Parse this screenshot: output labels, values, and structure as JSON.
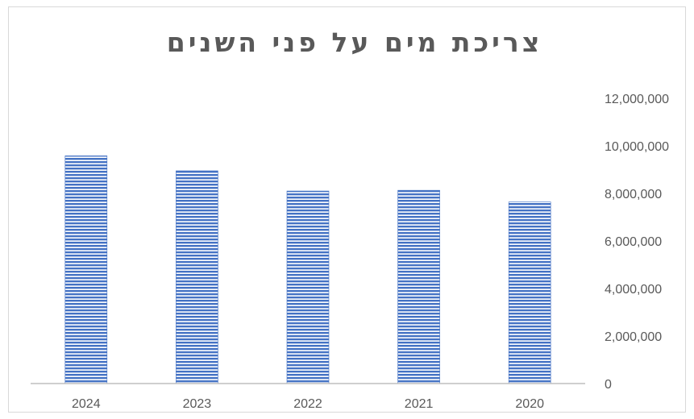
{
  "chart_data": {
    "type": "bar",
    "title": "צריכת מים על פני השנים",
    "categories": [
      "2024",
      "2023",
      "2022",
      "2021",
      "2020"
    ],
    "values": [
      9580000,
      8950000,
      8100000,
      8130000,
      7640000
    ],
    "ylim": [
      0,
      12000000
    ],
    "y_ticks": [
      "0",
      "2,000,000",
      "4,000,000",
      "6,000,000",
      "8,000,000",
      "10,000,000",
      "12,000,000"
    ],
    "y_axis_position": "right",
    "gridlines": false,
    "legend": "none",
    "bar_color": "#4472c4",
    "bar_fill_pattern": "horizontal-stripes"
  }
}
